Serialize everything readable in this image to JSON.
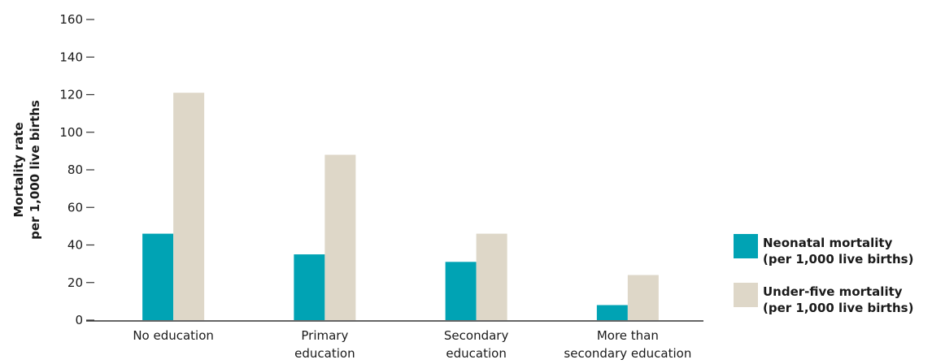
{
  "chart_data": {
    "type": "bar",
    "categories": [
      [
        "No education"
      ],
      [
        "Primary",
        "education"
      ],
      [
        "Secondary",
        "education"
      ],
      [
        "More than",
        "secondary education"
      ]
    ],
    "series": [
      {
        "name": [
          "Neonatal mortality",
          "(per 1,000 live births)"
        ],
        "color": "#00a3b4",
        "values": [
          46,
          35,
          31,
          8
        ]
      },
      {
        "name": [
          "Under-five mortality",
          "(per 1,000 live births)"
        ],
        "color": "#ded7c8",
        "values": [
          121,
          88,
          46,
          24
        ]
      }
    ],
    "ylabel": [
      "Mortality rate",
      "per 1,000 live births"
    ],
    "ylim": [
      0,
      160
    ],
    "yticks": [
      0,
      20,
      40,
      60,
      80,
      100,
      120,
      140,
      160
    ],
    "grid": false,
    "legend": "right"
  }
}
